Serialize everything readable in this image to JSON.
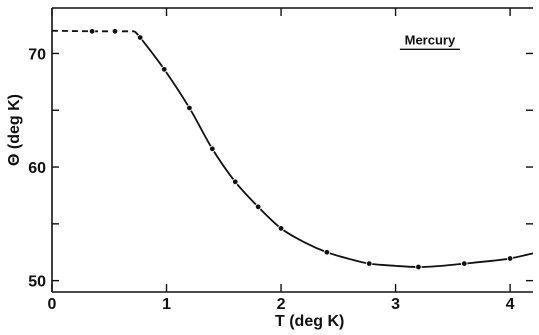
{
  "chart_data": {
    "type": "line",
    "annotation": "Mercury",
    "xlabel": "T (deg K)",
    "ylabel": "Θ (deg K)",
    "xlim": [
      0,
      4.2
    ],
    "ylim": [
      49,
      74
    ],
    "x_ticks": [
      0,
      1,
      2,
      3,
      4
    ],
    "x_tick_labels": [
      "0",
      "1",
      "2",
      "3",
      "4"
    ],
    "y_ticks": [
      50,
      60,
      70
    ],
    "y_tick_labels": [
      "50",
      "60",
      "70"
    ],
    "y_minor_ticks": [
      50,
      55,
      60,
      65,
      70
    ],
    "grid": false,
    "series": [
      {
        "style": "points",
        "x": [
          0.35,
          0.55,
          0.77,
          0.98,
          1.2,
          1.4,
          1.6,
          1.8,
          2.0,
          2.4,
          2.77,
          3.2,
          3.6,
          4.0
        ],
        "values": [
          71.95,
          71.95,
          71.4,
          68.6,
          65.2,
          61.6,
          58.7,
          56.5,
          54.6,
          52.5,
          51.5,
          51.2,
          51.5,
          51.95
        ]
      },
      {
        "style": "curve",
        "x": [
          0.72,
          0.77,
          0.98,
          1.2,
          1.4,
          1.6,
          1.8,
          2.0,
          2.2,
          2.4,
          2.6,
          2.77,
          3.0,
          3.2,
          3.4,
          3.6,
          3.8,
          4.0,
          4.2
        ],
        "values": [
          71.95,
          71.4,
          68.6,
          65.2,
          61.6,
          58.7,
          56.5,
          54.6,
          53.4,
          52.5,
          51.9,
          51.5,
          51.3,
          51.2,
          51.3,
          51.5,
          51.7,
          51.95,
          52.4
        ]
      },
      {
        "style": "dashed",
        "x": [
          0,
          0.35,
          0.72
        ],
        "values": [
          72.0,
          71.95,
          71.95
        ]
      }
    ]
  }
}
